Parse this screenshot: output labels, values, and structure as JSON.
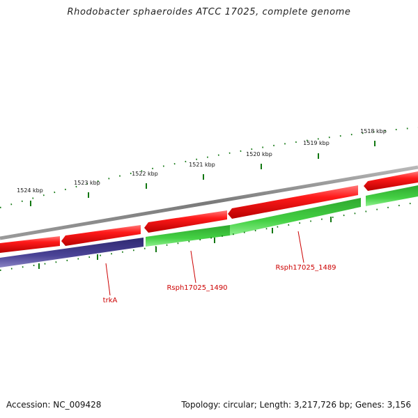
{
  "title": "Rhodobacter sphaeroides ATCC 17025, complete genome",
  "ticks": [
    "1524 kbp",
    "1523 kbp",
    "1522 kbp",
    "1521 kbp",
    "1520 kbp",
    "1519 kbp",
    "1518 kbp"
  ],
  "forward_genes": [
    {
      "name": "",
      "color": "#e00000"
    },
    {
      "name": "",
      "color": "#e00000"
    },
    {
      "name": "",
      "color": "#e00000"
    },
    {
      "name": "",
      "color": "#e00000"
    },
    {
      "name": "",
      "color": "#e00000"
    }
  ],
  "reverse_genes": [
    {
      "name": "trkA",
      "color": "#3f3787"
    },
    {
      "name": "Rsph17025_1490",
      "color": "#33bb33"
    },
    {
      "name": "Rsph17025_1489",
      "color": "#33bb33"
    },
    {
      "name": "",
      "color": "#33bb33"
    }
  ],
  "colors": {
    "backbone": "#8a8a8a",
    "forward": "#e00000",
    "reverse_other": "#3f3787",
    "reverse_cds": "#33bb33",
    "tick_marks": "#117711",
    "label_line": "#cc0000",
    "label_text": "#cc0000"
  },
  "footer": {
    "accession": "Accession: NC_009428",
    "summary": "Topology: circular; Length: 3,217,726 bp; Genes: 3,156"
  }
}
